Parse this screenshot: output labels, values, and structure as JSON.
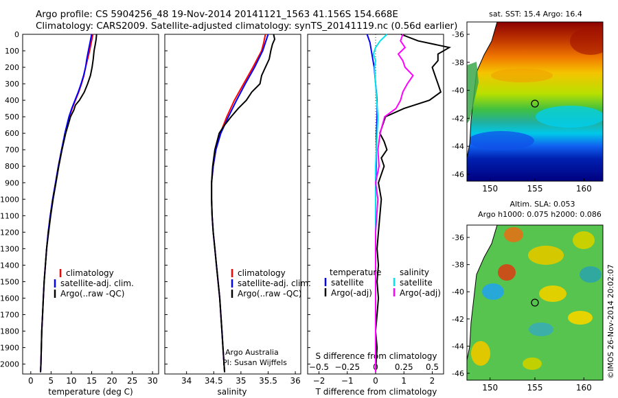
{
  "header": {
    "line1": "Argo profile: CS 5904256_48 19-Nov-2014 20141121_1563 41.156S 154.668E",
    "line2": "Climatology: CARS2009. Satellite-adjusted climatology: synTS_20141119.nc (0.56d earlier)"
  },
  "colors": {
    "climatology": "#ff0000",
    "satellite": "#0000ff",
    "argo": "#000000",
    "sat_salinity": "#00e5ee",
    "argo_salinity_adj": "#ff00ff"
  },
  "depth_axis": {
    "ticks": [
      0,
      100,
      200,
      300,
      400,
      500,
      600,
      700,
      800,
      900,
      1000,
      1100,
      1200,
      1300,
      1400,
      1500,
      1600,
      1700,
      1800,
      1900,
      2000
    ],
    "range": [
      0,
      2060
    ]
  },
  "chart_data": [
    {
      "type": "line",
      "xlabel": "temperature (deg C)",
      "xlim": [
        -2,
        31.5
      ],
      "xticks": [
        0,
        5,
        10,
        15,
        20,
        25,
        30
      ],
      "ylim": [
        0,
        2060
      ],
      "legend": [
        "climatology",
        "satellite-adj. clim.",
        "Argo(..raw -QC)"
      ],
      "series": [
        {
          "name": "climatology",
          "depth": [
            0,
            50,
            100,
            150,
            200,
            250,
            300,
            350,
            400,
            450,
            500,
            600,
            700,
            800,
            900,
            1000,
            1100,
            1200,
            1300,
            1400,
            1500,
            1600,
            1700,
            1800,
            1900,
            2000,
            2050
          ],
          "values": [
            15.3,
            14.9,
            14.5,
            14.0,
            13.5,
            13.1,
            12.5,
            11.8,
            11.0,
            10.2,
            9.5,
            8.5,
            7.6,
            6.8,
            6.1,
            5.4,
            4.8,
            4.3,
            3.9,
            3.6,
            3.3,
            3.1,
            2.9,
            2.7,
            2.6,
            2.5,
            2.4
          ]
        },
        {
          "name": "satellite-adj. clim.",
          "depth": [
            0,
            50,
            100,
            150,
            200,
            250,
            300,
            350,
            400,
            450,
            500,
            600,
            700,
            800,
            900,
            1000,
            1100,
            1200,
            1300,
            1400,
            1500,
            1600,
            1700,
            1800,
            1900,
            2000,
            2050
          ],
          "values": [
            15.0,
            14.6,
            14.2,
            13.8,
            13.5,
            13.0,
            12.4,
            11.7,
            10.9,
            10.1,
            9.4,
            8.4,
            7.6,
            6.8,
            6.1,
            5.4,
            4.8,
            4.3,
            3.9,
            3.6,
            3.3,
            3.1,
            2.9,
            2.7,
            2.6,
            2.5,
            2.4
          ]
        },
        {
          "name": "Argo(..raw -QC)",
          "depth": [
            0,
            30,
            60,
            100,
            150,
            200,
            250,
            300,
            350,
            400,
            430,
            460,
            500,
            600,
            700,
            800,
            900,
            1000,
            1100,
            1200,
            1300,
            1400,
            1500,
            1600,
            1700,
            1800,
            1900,
            2000,
            2050
          ],
          "values": [
            16.2,
            16.1,
            15.9,
            15.6,
            15.4,
            15.1,
            14.7,
            14.0,
            13.2,
            12.0,
            11.0,
            10.6,
            9.8,
            8.6,
            7.7,
            6.9,
            6.2,
            5.5,
            4.9,
            4.4,
            3.9,
            3.6,
            3.3,
            3.1,
            2.9,
            2.7,
            2.6,
            2.5,
            2.4
          ]
        }
      ]
    },
    {
      "type": "line",
      "xlabel": "salinity",
      "xlim": [
        33.6,
        36.1
      ],
      "xticks": [
        34,
        34.5,
        35,
        35.5,
        36
      ],
      "ylim": [
        0,
        2060
      ],
      "legend": [
        "climatology",
        "satellite-adj. clim.",
        "Argo(..raw -QC)"
      ],
      "annotation": [
        "Argo Australia",
        "PI: Susan Wijffels"
      ],
      "series": [
        {
          "name": "climatology",
          "depth": [
            0,
            50,
            100,
            200,
            300,
            400,
            500,
            600,
            700,
            800,
            900,
            1000,
            1100,
            1200,
            1300,
            1400,
            1500,
            1600,
            1700,
            1800,
            1900,
            2000,
            2050
          ],
          "values": [
            35.45,
            35.42,
            35.38,
            35.22,
            35.05,
            34.88,
            34.74,
            34.62,
            34.54,
            34.49,
            34.46,
            34.46,
            34.47,
            34.49,
            34.52,
            34.55,
            34.58,
            34.61,
            34.63,
            34.65,
            34.67,
            34.69,
            34.7
          ]
        },
        {
          "name": "satellite-adj. clim.",
          "depth": [
            0,
            50,
            100,
            200,
            300,
            400,
            500,
            600,
            700,
            800,
            900,
            1000,
            1100,
            1200,
            1300,
            1400,
            1500,
            1600,
            1700,
            1800,
            1900,
            2000,
            2050
          ],
          "values": [
            35.5,
            35.45,
            35.4,
            35.25,
            35.08,
            34.92,
            34.77,
            34.63,
            34.54,
            34.49,
            34.46,
            34.46,
            34.47,
            34.49,
            34.52,
            34.55,
            34.58,
            34.61,
            34.63,
            34.65,
            34.67,
            34.69,
            34.7
          ]
        },
        {
          "name": "Argo(..raw -QC)",
          "depth": [
            0,
            30,
            60,
            100,
            150,
            200,
            250,
            300,
            350,
            400,
            450,
            500,
            550,
            600,
            700,
            800,
            900,
            1000,
            1100,
            1200,
            1300,
            1400,
            1500,
            1600,
            1700,
            1800,
            1900,
            2000,
            2050
          ],
          "values": [
            35.6,
            35.62,
            35.58,
            35.55,
            35.52,
            35.45,
            35.38,
            35.35,
            35.2,
            35.1,
            34.95,
            34.82,
            34.7,
            34.6,
            34.52,
            34.48,
            34.46,
            34.46,
            34.47,
            34.49,
            34.52,
            34.55,
            34.58,
            34.61,
            34.63,
            34.65,
            34.67,
            34.69,
            34.7
          ]
        }
      ]
    },
    {
      "type": "line",
      "xlabel": "T difference from climatology",
      "xlabel_top": "S difference from climatology",
      "xlim": [
        -2.4,
        2.4
      ],
      "xticks": [
        -2,
        -1,
        0,
        1,
        2
      ],
      "xticks_top": [
        -0.5,
        -0.25,
        0,
        0.25,
        0.5
      ],
      "ylim": [
        0,
        2060
      ],
      "legend_left_title": "temperature",
      "legend_left": [
        "satellite",
        "Argo(-adj)"
      ],
      "legend_right_title": "salinity",
      "legend_right": [
        "satellite",
        "Argo(-adj)"
      ],
      "series": [
        {
          "name": "temperature satellite",
          "depth": [
            0,
            50,
            100,
            200,
            300,
            400,
            500,
            600,
            800,
            1000,
            1500,
            2050
          ],
          "values": [
            -0.3,
            -0.2,
            -0.15,
            -0.05,
            0.0,
            0.05,
            0.05,
            0.03,
            0.02,
            0.0,
            0.0,
            0.0
          ]
        },
        {
          "name": "temperature Argo(-adj)",
          "depth": [
            0,
            40,
            80,
            120,
            160,
            200,
            250,
            300,
            350,
            400,
            450,
            500,
            550,
            600,
            650,
            700,
            750,
            800,
            900,
            1000,
            1100,
            1200,
            1300,
            1400,
            1500,
            1600,
            1700,
            1800,
            1900,
            2050
          ],
          "values": [
            0.9,
            1.5,
            2.6,
            2.2,
            2.2,
            2.0,
            2.1,
            2.2,
            2.3,
            1.9,
            1.0,
            0.35,
            0.25,
            0.15,
            0.3,
            0.4,
            0.2,
            0.3,
            0.1,
            0.2,
            0.15,
            0.1,
            0.05,
            0.1,
            0.05,
            0.1,
            0.05,
            0.0,
            0.05,
            0.0
          ]
        },
        {
          "name": "salinity satellite",
          "depth": [
            0,
            40,
            80,
            120,
            160,
            200,
            300,
            400,
            500,
            800,
            1000,
            1500,
            2050
          ],
          "values": [
            0.1,
            0.04,
            0.0,
            -0.02,
            0.0,
            -0.01,
            0.0,
            0.01,
            0.02,
            0.0,
            0.0,
            0.0,
            0.0
          ]
        },
        {
          "name": "salinity Argo(-adj)",
          "depth": [
            0,
            40,
            80,
            120,
            160,
            200,
            250,
            300,
            350,
            400,
            450,
            500,
            600,
            700,
            800,
            900,
            1000,
            1100,
            1200,
            1500,
            2050
          ],
          "values": [
            0.24,
            0.22,
            0.26,
            0.2,
            0.24,
            0.26,
            0.33,
            0.28,
            0.24,
            0.22,
            0.18,
            0.08,
            0.04,
            0.02,
            0.03,
            0.0,
            0.02,
            0.01,
            0.0,
            0.0,
            0.0
          ]
        }
      ]
    }
  ],
  "maps": {
    "sst": {
      "title": "sat. SST: 15.4  Argo: 16.4",
      "lat_ticks": [
        "-36",
        "-38",
        "-40",
        "-42",
        "-44",
        "-46"
      ],
      "lon_ticks": [
        "150",
        "155",
        "160"
      ]
    },
    "sla": {
      "title1": "Altim. SLA: 0.053",
      "title2": "Argo h1000: 0.075 h2000: 0.086",
      "lat_ticks": [
        "-36",
        "-38",
        "-40",
        "-42",
        "-44",
        "-46"
      ],
      "lon_ticks": [
        "150",
        "155",
        "160"
      ]
    },
    "float_position": {
      "lon": 154.668,
      "lat": -41.156
    }
  },
  "credit": "©IMOS 26-Nov-2014 20:02:07"
}
